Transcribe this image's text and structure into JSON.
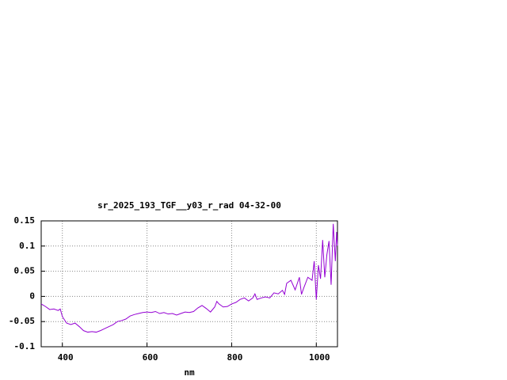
{
  "chart_data": {
    "type": "line",
    "title": "sr_2025_193_TGF__y03_r_rad 04-32-00",
    "x_label": "nm",
    "x": [
      350,
      360,
      370,
      380,
      390,
      395,
      400,
      410,
      420,
      430,
      440,
      450,
      460,
      470,
      480,
      490,
      500,
      510,
      520,
      530,
      540,
      550,
      560,
      570,
      580,
      590,
      600,
      610,
      620,
      630,
      640,
      650,
      660,
      670,
      680,
      690,
      700,
      710,
      720,
      730,
      740,
      750,
      760,
      765,
      770,
      780,
      790,
      800,
      810,
      820,
      830,
      840,
      850,
      855,
      860,
      870,
      880,
      890,
      900,
      910,
      920,
      925,
      930,
      940,
      950,
      960,
      965,
      970,
      980,
      990,
      995,
      1000,
      1005,
      1010,
      1015,
      1020,
      1025,
      1030,
      1035,
      1040,
      1045,
      1048,
      1050
    ],
    "series": [
      {
        "color": "#9400d3",
        "values": [
          -0.015,
          -0.02,
          -0.026,
          -0.025,
          -0.028,
          -0.025,
          -0.04,
          -0.053,
          -0.056,
          -0.053,
          -0.06,
          -0.068,
          -0.071,
          -0.07,
          -0.071,
          -0.068,
          -0.064,
          -0.06,
          -0.056,
          -0.05,
          -0.048,
          -0.045,
          -0.039,
          -0.036,
          -0.034,
          -0.032,
          -0.031,
          -0.032,
          -0.03,
          -0.034,
          -0.032,
          -0.035,
          -0.034,
          -0.037,
          -0.034,
          -0.031,
          -0.032,
          -0.03,
          -0.023,
          -0.018,
          -0.024,
          -0.031,
          -0.021,
          -0.01,
          -0.015,
          -0.021,
          -0.02,
          -0.015,
          -0.012,
          -0.006,
          -0.003,
          -0.009,
          -0.003,
          0.005,
          -0.006,
          -0.003,
          -0.001,
          -0.003,
          0.007,
          0.005,
          0.012,
          0.004,
          0.026,
          0.032,
          0.013,
          0.038,
          0.004,
          0.016,
          0.038,
          0.032,
          0.07,
          -0.006,
          0.062,
          0.035,
          0.112,
          0.038,
          0.083,
          0.11,
          0.023,
          0.144,
          0.07,
          0.128,
          0.101
        ]
      }
    ],
    "xlim": [
      350,
      1050
    ],
    "xticks": [
      400,
      600,
      800,
      1000
    ],
    "ylim": [
      -0.1,
      0.15
    ],
    "yticks": [
      -0.1,
      -0.05,
      0,
      0.05,
      0.1,
      0.15
    ],
    "grid": true
  }
}
